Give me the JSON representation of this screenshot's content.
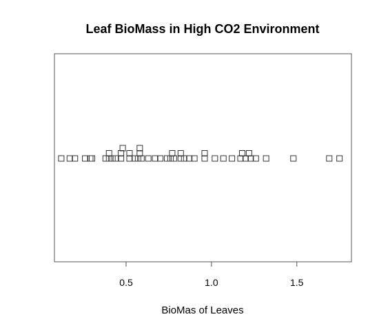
{
  "chart_data": {
    "type": "scatter",
    "title": "Leaf BioMass in High CO2 Environment",
    "xlabel": "BioMas of Leaves",
    "ylabel": "",
    "xlim": [
      0.08,
      1.82
    ],
    "x_ticks": [
      {
        "value": 0.5,
        "label": "0.5"
      },
      {
        "value": 1.0,
        "label": "1.0"
      },
      {
        "value": 1.5,
        "label": "1.5"
      }
    ],
    "stack_method": "stack",
    "marker": "open-square",
    "grid": false,
    "legend": "none",
    "points": [
      {
        "x": 0.12,
        "stack": 0
      },
      {
        "x": 0.17,
        "stack": 0
      },
      {
        "x": 0.2,
        "stack": 0
      },
      {
        "x": 0.26,
        "stack": 0
      },
      {
        "x": 0.29,
        "stack": 0
      },
      {
        "x": 0.3,
        "stack": 0
      },
      {
        "x": 0.38,
        "stack": 0
      },
      {
        "x": 0.4,
        "stack": 0
      },
      {
        "x": 0.4,
        "stack": 1
      },
      {
        "x": 0.42,
        "stack": 0
      },
      {
        "x": 0.44,
        "stack": 0
      },
      {
        "x": 0.47,
        "stack": 0
      },
      {
        "x": 0.47,
        "stack": 1
      },
      {
        "x": 0.48,
        "stack": 2
      },
      {
        "x": 0.52,
        "stack": 0
      },
      {
        "x": 0.52,
        "stack": 1
      },
      {
        "x": 0.55,
        "stack": 0
      },
      {
        "x": 0.57,
        "stack": 0
      },
      {
        "x": 0.58,
        "stack": 1
      },
      {
        "x": 0.58,
        "stack": 2
      },
      {
        "x": 0.59,
        "stack": 0
      },
      {
        "x": 0.63,
        "stack": 0
      },
      {
        "x": 0.67,
        "stack": 0
      },
      {
        "x": 0.7,
        "stack": 0
      },
      {
        "x": 0.74,
        "stack": 0
      },
      {
        "x": 0.76,
        "stack": 0
      },
      {
        "x": 0.77,
        "stack": 1
      },
      {
        "x": 0.78,
        "stack": 0
      },
      {
        "x": 0.82,
        "stack": 0
      },
      {
        "x": 0.82,
        "stack": 1
      },
      {
        "x": 0.84,
        "stack": 0
      },
      {
        "x": 0.87,
        "stack": 0
      },
      {
        "x": 0.9,
        "stack": 0
      },
      {
        "x": 0.96,
        "stack": 0
      },
      {
        "x": 0.96,
        "stack": 1
      },
      {
        "x": 1.02,
        "stack": 0
      },
      {
        "x": 1.07,
        "stack": 0
      },
      {
        "x": 1.12,
        "stack": 0
      },
      {
        "x": 1.17,
        "stack": 0
      },
      {
        "x": 1.18,
        "stack": 1
      },
      {
        "x": 1.2,
        "stack": 0
      },
      {
        "x": 1.22,
        "stack": 1
      },
      {
        "x": 1.23,
        "stack": 0
      },
      {
        "x": 1.26,
        "stack": 0
      },
      {
        "x": 1.32,
        "stack": 0
      },
      {
        "x": 1.48,
        "stack": 0
      },
      {
        "x": 1.69,
        "stack": 0
      },
      {
        "x": 1.75,
        "stack": 0
      }
    ]
  }
}
